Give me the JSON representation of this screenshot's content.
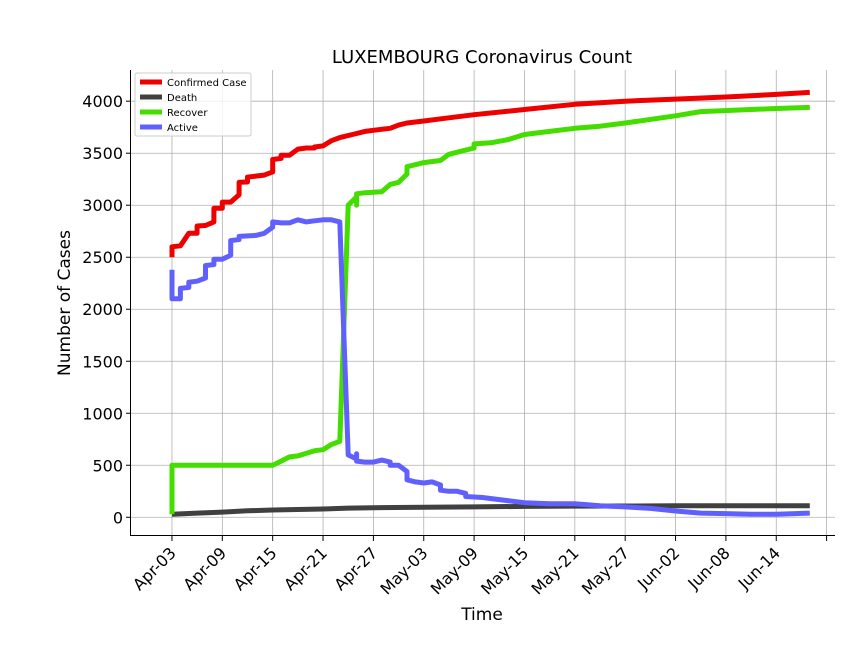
{
  "chart_data": {
    "type": "line",
    "title": "LUXEMBOURG Coronavirus Count",
    "xlabel": "Time",
    "ylabel": "Number of Cases",
    "grid": true,
    "legend_position": "top-left",
    "xlim": [
      "2020-03-29",
      "2020-06-21"
    ],
    "ylim": [
      -180,
      4300
    ],
    "x_ticks": [
      "Apr-03",
      "Apr-09",
      "Apr-15",
      "Apr-21",
      "Apr-27",
      "May-03",
      "May-09",
      "May-15",
      "May-21",
      "May-27",
      "Jun-02",
      "Jun-08",
      "Jun-14"
    ],
    "x_tick_dates": [
      "2020-04-03",
      "2020-04-09",
      "2020-04-15",
      "2020-04-21",
      "2020-04-27",
      "2020-05-03",
      "2020-05-09",
      "2020-05-15",
      "2020-05-21",
      "2020-05-27",
      "2020-06-02",
      "2020-06-08",
      "2020-06-14"
    ],
    "y_ticks": [
      0,
      500,
      1000,
      1500,
      2000,
      2500,
      3000,
      3500,
      4000
    ],
    "series": [
      {
        "name": "Confirmed Case",
        "color": "#ee0000",
        "points": [
          [
            "2020-04-03",
            2500
          ],
          [
            "2020-04-03",
            2600
          ],
          [
            "2020-04-04",
            2610
          ],
          [
            "2020-04-05",
            2730
          ],
          [
            "2020-04-06",
            2730
          ],
          [
            "2020-04-06",
            2800
          ],
          [
            "2020-04-07",
            2805
          ],
          [
            "2020-04-08",
            2840
          ],
          [
            "2020-04-08",
            2970
          ],
          [
            "2020-04-09",
            2970
          ],
          [
            "2020-04-09",
            3030
          ],
          [
            "2020-04-10",
            3030
          ],
          [
            "2020-04-11",
            3100
          ],
          [
            "2020-04-11",
            3220
          ],
          [
            "2020-04-12",
            3223
          ],
          [
            "2020-04-12",
            3270
          ],
          [
            "2020-04-14",
            3290
          ],
          [
            "2020-04-15",
            3320
          ],
          [
            "2020-04-15",
            3440
          ],
          [
            "2020-04-16",
            3450
          ],
          [
            "2020-04-16",
            3480
          ],
          [
            "2020-04-17",
            3480
          ],
          [
            "2020-04-18",
            3540
          ],
          [
            "2020-04-19",
            3550
          ],
          [
            "2020-04-20",
            3550
          ],
          [
            "2020-04-20",
            3560
          ],
          [
            "2020-04-21",
            3570
          ],
          [
            "2020-04-22",
            3620
          ],
          [
            "2020-04-23",
            3650
          ],
          [
            "2020-04-25",
            3690
          ],
          [
            "2020-04-26",
            3710
          ],
          [
            "2020-04-27",
            3720
          ],
          [
            "2020-04-29",
            3740
          ],
          [
            "2020-04-30",
            3770
          ],
          [
            "2020-05-01",
            3790
          ],
          [
            "2020-05-03",
            3810
          ],
          [
            "2020-05-06",
            3840
          ],
          [
            "2020-05-09",
            3870
          ],
          [
            "2020-05-15",
            3920
          ],
          [
            "2020-05-21",
            3970
          ],
          [
            "2020-05-27",
            4000
          ],
          [
            "2020-06-02",
            4020
          ],
          [
            "2020-06-08",
            4040
          ],
          [
            "2020-06-14",
            4065
          ],
          [
            "2020-06-18",
            4085
          ]
        ]
      },
      {
        "name": "Death",
        "color": "#404040",
        "points": [
          [
            "2020-04-03",
            30
          ],
          [
            "2020-04-06",
            40
          ],
          [
            "2020-04-09",
            50
          ],
          [
            "2020-04-12",
            62
          ],
          [
            "2020-04-15",
            70
          ],
          [
            "2020-04-18",
            75
          ],
          [
            "2020-04-21",
            80
          ],
          [
            "2020-04-24",
            88
          ],
          [
            "2020-04-27",
            92
          ],
          [
            "2020-05-03",
            96
          ],
          [
            "2020-05-09",
            100
          ],
          [
            "2020-05-15",
            105
          ],
          [
            "2020-05-21",
            107
          ],
          [
            "2020-05-27",
            108
          ],
          [
            "2020-06-02",
            110
          ],
          [
            "2020-06-08",
            110
          ],
          [
            "2020-06-14",
            110
          ],
          [
            "2020-06-18",
            110
          ]
        ]
      },
      {
        "name": "Recover",
        "color": "#44dd00",
        "points": [
          [
            "2020-04-03",
            30
          ],
          [
            "2020-04-03",
            500
          ],
          [
            "2020-04-15",
            500
          ],
          [
            "2020-04-16",
            540
          ],
          [
            "2020-04-17",
            580
          ],
          [
            "2020-04-18",
            590
          ],
          [
            "2020-04-20",
            640
          ],
          [
            "2020-04-21",
            650
          ],
          [
            "2020-04-22",
            700
          ],
          [
            "2020-04-23",
            730
          ],
          [
            "2020-04-24",
            3000
          ],
          [
            "2020-04-25",
            3080
          ],
          [
            "2020-04-25",
            3000
          ],
          [
            "2020-04-25",
            3110
          ],
          [
            "2020-04-26",
            3120
          ],
          [
            "2020-04-28",
            3130
          ],
          [
            "2020-04-29",
            3200
          ],
          [
            "2020-04-30",
            3220
          ],
          [
            "2020-05-01",
            3300
          ],
          [
            "2020-05-01",
            3370
          ],
          [
            "2020-05-02",
            3390
          ],
          [
            "2020-05-03",
            3410
          ],
          [
            "2020-05-05",
            3430
          ],
          [
            "2020-05-06",
            3490
          ],
          [
            "2020-05-07",
            3510
          ],
          [
            "2020-05-08",
            3530
          ],
          [
            "2020-05-09",
            3550
          ],
          [
            "2020-05-09",
            3590
          ],
          [
            "2020-05-11",
            3600
          ],
          [
            "2020-05-13",
            3630
          ],
          [
            "2020-05-15",
            3680
          ],
          [
            "2020-05-18",
            3710
          ],
          [
            "2020-05-21",
            3740
          ],
          [
            "2020-05-24",
            3760
          ],
          [
            "2020-05-27",
            3790
          ],
          [
            "2020-06-02",
            3860
          ],
          [
            "2020-06-05",
            3900
          ],
          [
            "2020-06-11",
            3920
          ],
          [
            "2020-06-14",
            3930
          ],
          [
            "2020-06-18",
            3940
          ]
        ]
      },
      {
        "name": "Active",
        "color": "#6060ff",
        "points": [
          [
            "2020-04-03",
            2380
          ],
          [
            "2020-04-03",
            2100
          ],
          [
            "2020-04-04",
            2100
          ],
          [
            "2020-04-04",
            2200
          ],
          [
            "2020-04-05",
            2210
          ],
          [
            "2020-04-05",
            2260
          ],
          [
            "2020-04-06",
            2270
          ],
          [
            "2020-04-07",
            2300
          ],
          [
            "2020-04-07",
            2420
          ],
          [
            "2020-04-08",
            2430
          ],
          [
            "2020-04-08",
            2480
          ],
          [
            "2020-04-09",
            2480
          ],
          [
            "2020-04-10",
            2520
          ],
          [
            "2020-04-10",
            2660
          ],
          [
            "2020-04-11",
            2670
          ],
          [
            "2020-04-11",
            2700
          ],
          [
            "2020-04-13",
            2710
          ],
          [
            "2020-04-14",
            2730
          ],
          [
            "2020-04-15",
            2790
          ],
          [
            "2020-04-15",
            2840
          ],
          [
            "2020-04-16",
            2830
          ],
          [
            "2020-04-17",
            2830
          ],
          [
            "2020-04-18",
            2860
          ],
          [
            "2020-04-19",
            2840
          ],
          [
            "2020-04-20",
            2850
          ],
          [
            "2020-04-21",
            2860
          ],
          [
            "2020-04-22",
            2860
          ],
          [
            "2020-04-23",
            2840
          ],
          [
            "2020-04-24",
            600
          ],
          [
            "2020-04-25",
            560
          ],
          [
            "2020-04-25",
            610
          ],
          [
            "2020-04-25",
            540
          ],
          [
            "2020-04-26",
            530
          ],
          [
            "2020-04-27",
            530
          ],
          [
            "2020-04-28",
            550
          ],
          [
            "2020-04-29",
            530
          ],
          [
            "2020-04-29",
            500
          ],
          [
            "2020-04-30",
            500
          ],
          [
            "2020-05-01",
            440
          ],
          [
            "2020-05-01",
            360
          ],
          [
            "2020-05-02",
            340
          ],
          [
            "2020-05-03",
            330
          ],
          [
            "2020-05-04",
            340
          ],
          [
            "2020-05-05",
            310
          ],
          [
            "2020-05-05",
            260
          ],
          [
            "2020-05-06",
            250
          ],
          [
            "2020-05-07",
            250
          ],
          [
            "2020-05-08",
            230
          ],
          [
            "2020-05-08",
            200
          ],
          [
            "2020-05-10",
            190
          ],
          [
            "2020-05-12",
            170
          ],
          [
            "2020-05-14",
            150
          ],
          [
            "2020-05-15",
            140
          ],
          [
            "2020-05-18",
            130
          ],
          [
            "2020-05-21",
            130
          ],
          [
            "2020-05-24",
            110
          ],
          [
            "2020-05-27",
            100
          ],
          [
            "2020-05-30",
            85
          ],
          [
            "2020-06-02",
            60
          ],
          [
            "2020-06-05",
            40
          ],
          [
            "2020-06-08",
            35
          ],
          [
            "2020-06-11",
            30
          ],
          [
            "2020-06-14",
            30
          ],
          [
            "2020-06-18",
            40
          ]
        ]
      }
    ]
  }
}
